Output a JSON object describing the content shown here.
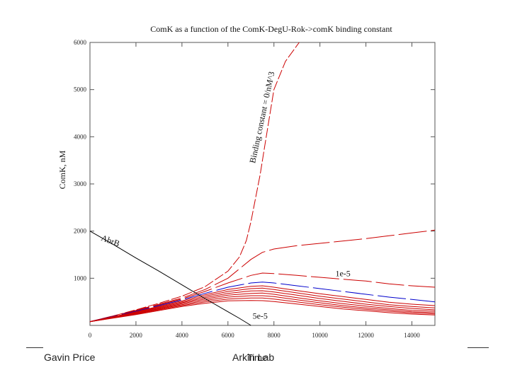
{
  "chart_data": {
    "type": "line",
    "title": "ComK as a function of the ComK-DegU-Rok->comK binding constant",
    "xlabel": "Time",
    "ylabel": "ComK, nM",
    "xlim": [
      0,
      15000
    ],
    "ylim": [
      0,
      6000
    ],
    "x_ticks": [
      "0",
      "2000",
      "4000",
      "6000",
      "8000",
      "10000",
      "12000",
      "14000"
    ],
    "y_ticks": [
      "1000",
      "2000",
      "3000",
      "4000",
      "5000",
      "6000"
    ],
    "grid": false,
    "legend": "none",
    "colors": {
      "red": "#cc0000",
      "blue": "#0000cc",
      "black": "#000000"
    },
    "annotations": [
      {
        "text": "Binding constant = 0/nM^3",
        "x": 7600,
        "y": 4400,
        "rotate": -78
      },
      {
        "text": "AbrB",
        "x": 850,
        "y": 1740,
        "rotate": 20
      },
      {
        "text": "1e-5",
        "x": 11000,
        "y": 1040,
        "rotate": 0
      },
      {
        "text": "5e-5",
        "x": 7400,
        "y": 140,
        "rotate": 0
      }
    ],
    "series": [
      {
        "name": "Binding constant = 0/nM^3",
        "color": "red",
        "x": [
          0,
          1000,
          2000,
          3000,
          4000,
          5000,
          6000,
          6500,
          6800,
          7000,
          7200,
          7400,
          7600,
          7800,
          8000,
          8500,
          9100
        ],
        "y": [
          80,
          200,
          330,
          470,
          620,
          820,
          1150,
          1450,
          1800,
          2200,
          2700,
          3200,
          3800,
          4400,
          5000,
          5600,
          6000
        ]
      },
      {
        "color": "red",
        "x": [
          0,
          2000,
          4000,
          5000,
          6000,
          6500,
          7000,
          7500,
          8000,
          9000,
          10000,
          12000,
          13000,
          14000,
          15000
        ],
        "y": [
          80,
          320,
          580,
          760,
          1000,
          1200,
          1400,
          1550,
          1620,
          1690,
          1740,
          1840,
          1900,
          1960,
          2020
        ]
      },
      {
        "name": "1e-5",
        "color": "red",
        "x": [
          0,
          2000,
          4000,
          5000,
          6000,
          7000,
          7500,
          8000,
          9000,
          10000,
          11000,
          12000,
          13000,
          14000,
          15000
        ],
        "y": [
          80,
          310,
          560,
          720,
          900,
          1060,
          1110,
          1100,
          1060,
          1020,
          980,
          940,
          880,
          840,
          810
        ]
      },
      {
        "color": "blue",
        "x": [
          0,
          2000,
          4000,
          5000,
          6000,
          7000,
          7500,
          8000,
          9000,
          10000,
          11000,
          12000,
          13000,
          14000,
          15000
        ],
        "y": [
          80,
          300,
          540,
          680,
          810,
          900,
          920,
          900,
          840,
          780,
          720,
          660,
          600,
          550,
          500
        ]
      },
      {
        "color": "red",
        "x": [
          0,
          2000,
          4000,
          5000,
          6000,
          7000,
          7500,
          8000,
          9000,
          10000,
          11000,
          12000,
          13000,
          14000,
          15000
        ],
        "y": [
          80,
          290,
          520,
          650,
          760,
          830,
          840,
          810,
          740,
          670,
          610,
          550,
          490,
          450,
          420
        ]
      },
      {
        "color": "red",
        "x": [
          0,
          2000,
          4000,
          5000,
          6000,
          7000,
          7500,
          8000,
          9000,
          10000,
          11000,
          12000,
          13000,
          14000,
          15000
        ],
        "y": [
          80,
          280,
          500,
          620,
          720,
          780,
          790,
          760,
          690,
          620,
          560,
          500,
          440,
          400,
          370
        ]
      },
      {
        "color": "red",
        "x": [
          0,
          2000,
          4000,
          5000,
          6000,
          7000,
          7500,
          8000,
          9000,
          10000,
          11000,
          12000,
          13000,
          14000,
          15000
        ],
        "y": [
          80,
          270,
          480,
          590,
          680,
          730,
          735,
          710,
          640,
          570,
          510,
          450,
          400,
          360,
          330
        ]
      },
      {
        "color": "red",
        "x": [
          0,
          2000,
          4000,
          5000,
          6000,
          7000,
          7500,
          8000,
          9000,
          10000,
          11000,
          12000,
          13000,
          14000,
          15000
        ],
        "y": [
          80,
          260,
          460,
          560,
          640,
          680,
          685,
          660,
          590,
          520,
          460,
          410,
          360,
          320,
          300
        ]
      },
      {
        "color": "red",
        "x": [
          0,
          2000,
          4000,
          5000,
          6000,
          7000,
          7500,
          8000,
          9000,
          10000,
          11000,
          12000,
          13000,
          14000,
          15000
        ],
        "y": [
          80,
          250,
          440,
          530,
          600,
          630,
          630,
          610,
          545,
          480,
          420,
          370,
          330,
          290,
          270
        ]
      },
      {
        "color": "red",
        "x": [
          0,
          2000,
          4000,
          5000,
          6000,
          7000,
          7500,
          8000,
          9000,
          10000,
          11000,
          12000,
          13000,
          14000,
          15000
        ],
        "y": [
          80,
          240,
          420,
          500,
          560,
          580,
          580,
          560,
          500,
          440,
          385,
          340,
          300,
          265,
          245
        ]
      },
      {
        "name": "5e-5",
        "color": "red",
        "x": [
          0,
          2000,
          4000,
          5000,
          6000,
          7000,
          7500,
          8000,
          9000,
          10000,
          11000,
          12000,
          13000,
          14000,
          15000
        ],
        "y": [
          80,
          230,
          400,
          470,
          520,
          530,
          525,
          505,
          455,
          400,
          350,
          310,
          270,
          240,
          220
        ]
      },
      {
        "name": "AbrB",
        "color": "black",
        "x": [
          0,
          1000,
          2000,
          3000,
          4000,
          5000,
          6000,
          6500,
          7000
        ],
        "y": [
          2000,
          1720,
          1430,
          1150,
          860,
          570,
          290,
          150,
          0
        ]
      }
    ]
  },
  "footer": {
    "author": "Gavin Price",
    "lab": "Arkin Lab"
  }
}
